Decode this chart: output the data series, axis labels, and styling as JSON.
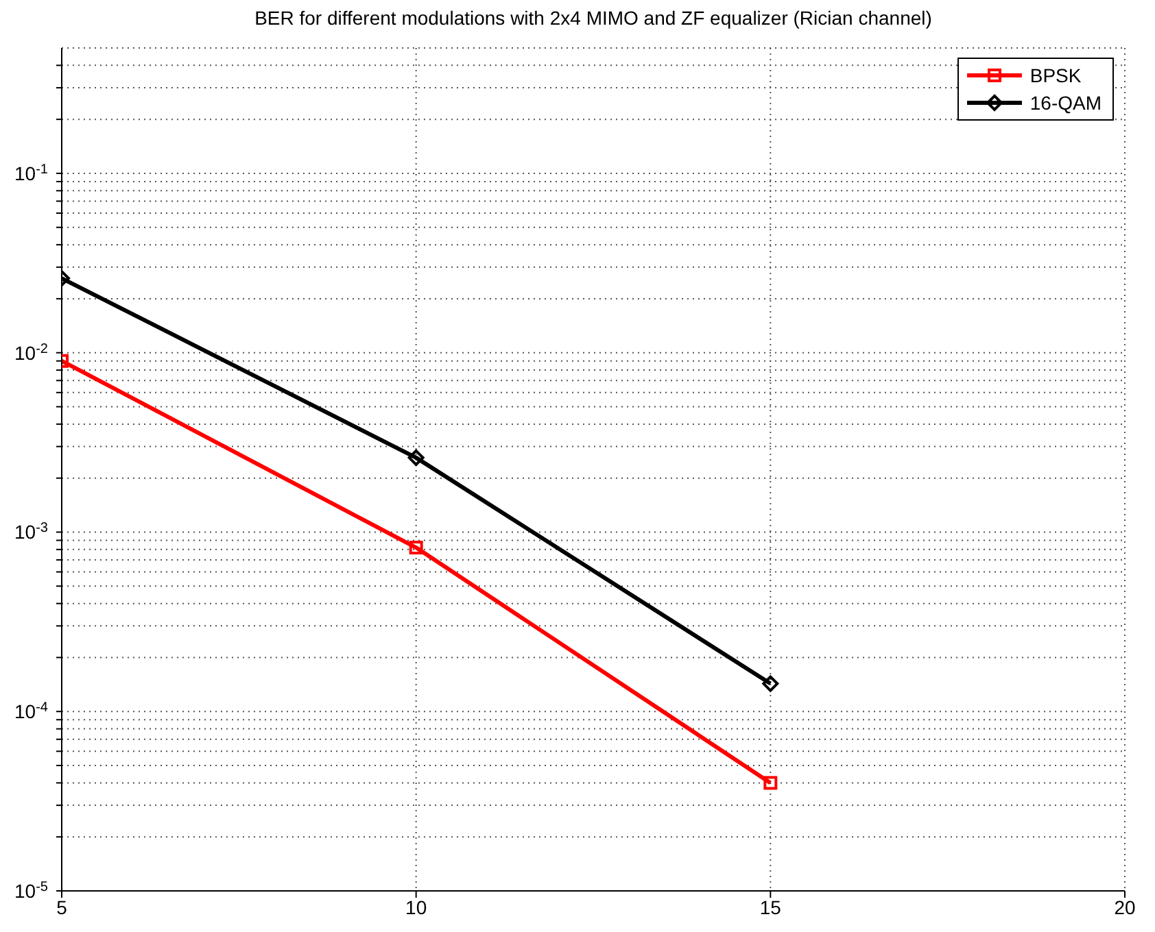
{
  "chart_data": {
    "type": "line",
    "title": "BER for different modulations with 2x4 MIMO and ZF equalizer (Rician channel)",
    "x": [
      5,
      10,
      15
    ],
    "series": [
      {
        "name": "BPSK",
        "color": "#ff0000",
        "marker": "square",
        "values": [
          0.009,
          0.00082,
          4e-05
        ]
      },
      {
        "name": "16-QAM",
        "color": "#000000",
        "marker": "diamond",
        "values": [
          0.026,
          0.0026,
          0.000143
        ]
      }
    ],
    "log": "y",
    "xlim": [
      5,
      20
    ],
    "xticks": [
      5,
      10,
      15,
      20
    ],
    "ylim": [
      1e-05,
      0.5
    ],
    "yticks": [
      {
        "value": 1e-05,
        "label": "10$^{-5}$"
      },
      {
        "value": 2e-05,
        "label": null
      },
      {
        "value": 3e-05,
        "label": null
      },
      {
        "value": 4e-05,
        "label": null
      },
      {
        "value": 5e-05,
        "label": null
      },
      {
        "value": 6e-05,
        "label": null
      },
      {
        "value": 7e-05,
        "label": null
      },
      {
        "value": 8e-05,
        "label": null
      },
      {
        "value": 9e-05,
        "label": null
      },
      {
        "value": 0.0001,
        "label": "10$^{-4}$"
      },
      {
        "value": 0.0002,
        "label": null
      },
      {
        "value": 0.0003,
        "label": null
      },
      {
        "value": 0.0004,
        "label": null
      },
      {
        "value": 0.0005,
        "label": null
      },
      {
        "value": 0.0006,
        "label": null
      },
      {
        "value": 0.0007,
        "label": null
      },
      {
        "value": 0.0008,
        "label": null
      },
      {
        "value": 0.0009,
        "label": null
      },
      {
        "value": 0.001,
        "label": "10$^{-3}$"
      },
      {
        "value": 0.002,
        "label": null
      },
      {
        "value": 0.003,
        "label": null
      },
      {
        "value": 0.004,
        "label": null
      },
      {
        "value": 0.005,
        "label": null
      },
      {
        "value": 0.006,
        "label": null
      },
      {
        "value": 0.007,
        "label": null
      },
      {
        "value": 0.008,
        "label": null
      },
      {
        "value": 0.009,
        "label": null
      },
      {
        "value": 0.01,
        "label": "10$^{-2}$"
      },
      {
        "value": 0.02,
        "label": null
      },
      {
        "value": 0.03,
        "label": null
      },
      {
        "value": 0.04,
        "label": null
      },
      {
        "value": 0.05,
        "label": null
      },
      {
        "value": 0.06,
        "label": null
      },
      {
        "value": 0.07,
        "label": null
      },
      {
        "value": 0.08,
        "label": null
      },
      {
        "value": 0.09,
        "label": null
      },
      {
        "value": 0.1,
        "label": "10$^{-1}$"
      },
      {
        "value": 0.2,
        "label": null
      },
      {
        "value": 0.3,
        "label": null
      },
      {
        "value": 0.4,
        "label": null
      }
    ],
    "grid": true,
    "legend": "top right",
    "line_style": "solid"
  }
}
